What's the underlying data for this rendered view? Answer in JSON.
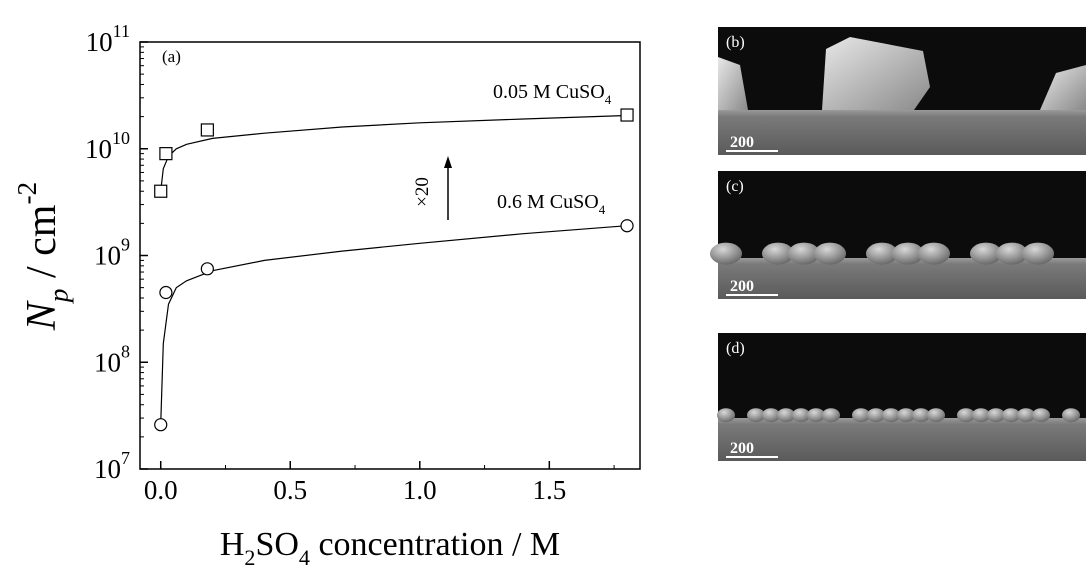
{
  "chart_data": {
    "type": "scatter",
    "panel_label": "(a)",
    "xlabel_parts": [
      {
        "text": "H"
      },
      {
        "text": "2",
        "style": "sub"
      },
      {
        "text": "SO"
      },
      {
        "text": "4",
        "style": "sub"
      },
      {
        "text": " concentration / M"
      }
    ],
    "ylabel_parts": [
      {
        "text": "N",
        "style": "italic"
      },
      {
        "text": "p",
        "style": "sub italic"
      },
      {
        "text": " / cm"
      },
      {
        "text": "-2",
        "style": "sup"
      }
    ],
    "xlim": [
      -0.08,
      1.85
    ],
    "xticks": [
      {
        "value": 0,
        "label": "0.0"
      },
      0.5,
      {
        "value": 1,
        "label": "1.0"
      },
      1.5
    ],
    "ylim": [
      10000000,
      100000000000
    ],
    "log_y": true,
    "yticks": [
      {
        "value": 10000000,
        "label": [
          {
            "text": "10"
          },
          {
            "text": "7",
            "style": "sup"
          }
        ]
      },
      {
        "value": 100000000,
        "label": [
          {
            "text": "10"
          },
          {
            "text": "8",
            "style": "sup"
          }
        ]
      },
      {
        "value": 1000000000,
        "label": [
          {
            "text": "10"
          },
          {
            "text": "9",
            "style": "sup"
          }
        ]
      },
      {
        "value": 10000000000,
        "label": [
          {
            "text": "10"
          },
          {
            "text": "10",
            "style": "sup"
          }
        ]
      },
      {
        "value": 100000000000,
        "label": [
          {
            "text": "10"
          },
          {
            "text": "11",
            "style": "sup"
          }
        ]
      }
    ],
    "arrow_label": "×20",
    "series": [
      {
        "label_parts": [
          {
            "text": "0.05 M CuSO"
          },
          {
            "text": "4",
            "style": "sub"
          }
        ],
        "marker": "square",
        "color": "#000",
        "x": [
          0,
          0.02,
          0.18,
          1.8
        ],
        "values": [
          4000000000,
          9000000000,
          15000000000,
          20700000000
        ],
        "fit_x": [
          0,
          0.01,
          0.03,
          0.06,
          0.1,
          0.2,
          0.4,
          0.7,
          1.0,
          1.4,
          1.8
        ],
        "fit_values": [
          4000000000,
          6500000000,
          8500000000,
          10000000000,
          11000000000,
          12500000000,
          14000000000,
          16000000000,
          17500000000,
          19000000000,
          20500000000
        ]
      },
      {
        "label_parts": [
          {
            "text": "0.6  M CuSO"
          },
          {
            "text": "4",
            "style": "sub"
          }
        ],
        "marker": "circle",
        "color": "#000",
        "x": [
          0,
          0.02,
          0.18,
          1.8
        ],
        "values": [
          26000000,
          450000000,
          750000000,
          1900000000
        ],
        "fit_x": [
          0,
          0.01,
          0.03,
          0.06,
          0.1,
          0.2,
          0.4,
          0.7,
          1.0,
          1.4,
          1.8
        ],
        "fit_values": [
          26000000,
          150000000,
          350000000,
          500000000,
          580000000,
          720000000,
          900000000,
          1100000000,
          1300000000,
          1600000000,
          1900000000
        ]
      }
    ]
  },
  "panels": [
    {
      "label": "(b)",
      "scale": "200"
    },
    {
      "label": "(c)",
      "scale": "200"
    },
    {
      "label": "(d)",
      "scale": "200"
    }
  ]
}
